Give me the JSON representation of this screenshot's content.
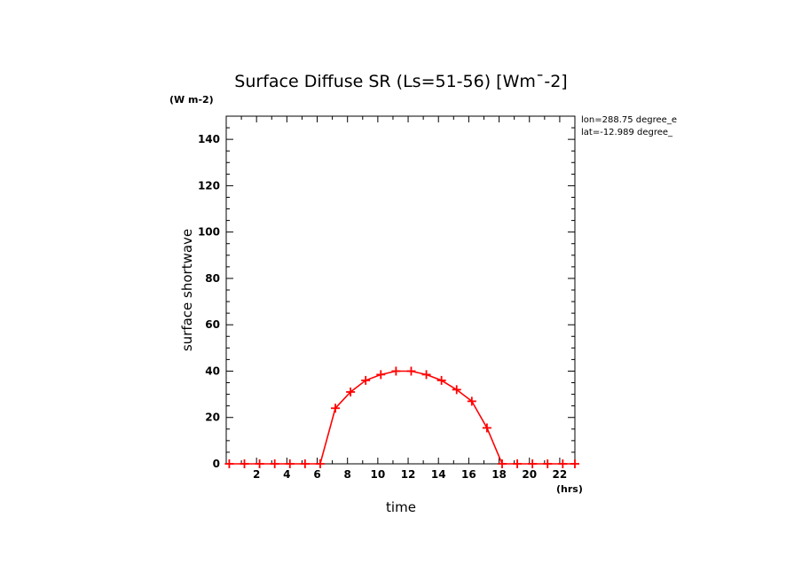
{
  "chart_data": {
    "type": "line",
    "title": "Surface Diffuse SR (Ls=51-56) [Wm¯-2]",
    "ylabel": "surface shortwave",
    "yunit": "(W m-2)",
    "xlabel": "time",
    "xunit": "(hrs)",
    "xlim": [
      0,
      23
    ],
    "ylim": [
      0,
      150
    ],
    "x_ticks": [
      2,
      4,
      6,
      8,
      10,
      12,
      14,
      16,
      18,
      20,
      22
    ],
    "y_ticks": [
      0,
      20,
      40,
      60,
      80,
      100,
      120,
      140
    ],
    "grid": false,
    "series": [
      {
        "color": "#ff0000",
        "marker": "plus",
        "points": [
          [
            0.2,
            0
          ],
          [
            1.2,
            0
          ],
          [
            2.2,
            0
          ],
          [
            3.2,
            0
          ],
          [
            4.2,
            0
          ],
          [
            5.2,
            0
          ],
          [
            6.2,
            0
          ],
          [
            7.2,
            24
          ],
          [
            8.2,
            31
          ],
          [
            9.2,
            36
          ],
          [
            10.2,
            38.5
          ],
          [
            11.2,
            40
          ],
          [
            12.2,
            40
          ],
          [
            13.2,
            38.5
          ],
          [
            14.2,
            36
          ],
          [
            15.2,
            32
          ],
          [
            16.2,
            27
          ],
          [
            17.2,
            15.5
          ],
          [
            18.2,
            0
          ],
          [
            19.2,
            0
          ],
          [
            20.2,
            0
          ],
          [
            21.2,
            0
          ],
          [
            22.2,
            0
          ],
          [
            23.0,
            0
          ]
        ]
      }
    ],
    "annotations": [
      "lon=288.75 degree_e",
      "lat=-12.989 degree_"
    ]
  }
}
